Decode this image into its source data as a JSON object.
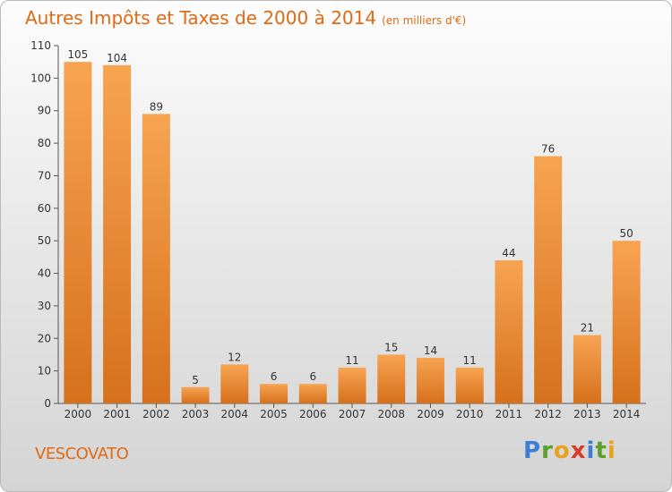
{
  "header": {
    "title": "Autres Impôts et Taxes de 2000 à 2014",
    "subtitle": "(en milliers d'€)"
  },
  "footer": {
    "commune": "VESCOVATO",
    "logo": "Proxiti"
  },
  "colors": {
    "bar_light": "#f7a451",
    "bar_dark": "#d6701c",
    "title": "#e06a14"
  },
  "chart_data": {
    "type": "bar",
    "title": "Autres Impôts et Taxes de 2000 à 2014",
    "subtitle": "(en milliers d'€)",
    "xlabel": "",
    "ylabel": "",
    "categories": [
      "2000",
      "2001",
      "2002",
      "2003",
      "2004",
      "2005",
      "2006",
      "2007",
      "2008",
      "2009",
      "2010",
      "2011",
      "2012",
      "2013",
      "2014"
    ],
    "values": [
      105,
      104,
      89,
      5,
      12,
      6,
      6,
      11,
      15,
      14,
      11,
      44,
      76,
      21,
      50
    ],
    "ylim": [
      0,
      110
    ],
    "yticks": [
      0,
      10,
      20,
      30,
      40,
      50,
      60,
      70,
      80,
      90,
      100,
      110
    ],
    "grid": false,
    "data_labels": true
  }
}
